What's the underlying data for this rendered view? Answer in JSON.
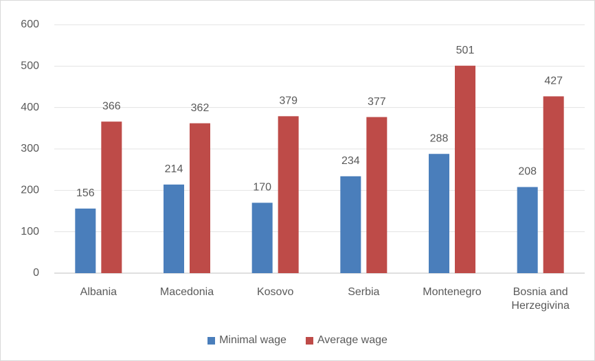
{
  "chart_data": {
    "type": "bar",
    "categories": [
      "Albania",
      "Macedonia",
      "Kosovo",
      "Serbia",
      "Montenegro",
      "Bosnia and Herzegivina"
    ],
    "series": [
      {
        "name": "Minimal wage",
        "color": "#4a7ebb",
        "values": [
          156,
          214,
          170,
          234,
          288,
          208
        ]
      },
      {
        "name": "Average wage",
        "color": "#be4b48",
        "values": [
          366,
          362,
          379,
          377,
          501,
          427
        ]
      }
    ],
    "ylim": [
      0,
      600
    ],
    "yticks": [
      0,
      100,
      200,
      300,
      400,
      500,
      600
    ],
    "grid": true,
    "legend": "bottom"
  }
}
